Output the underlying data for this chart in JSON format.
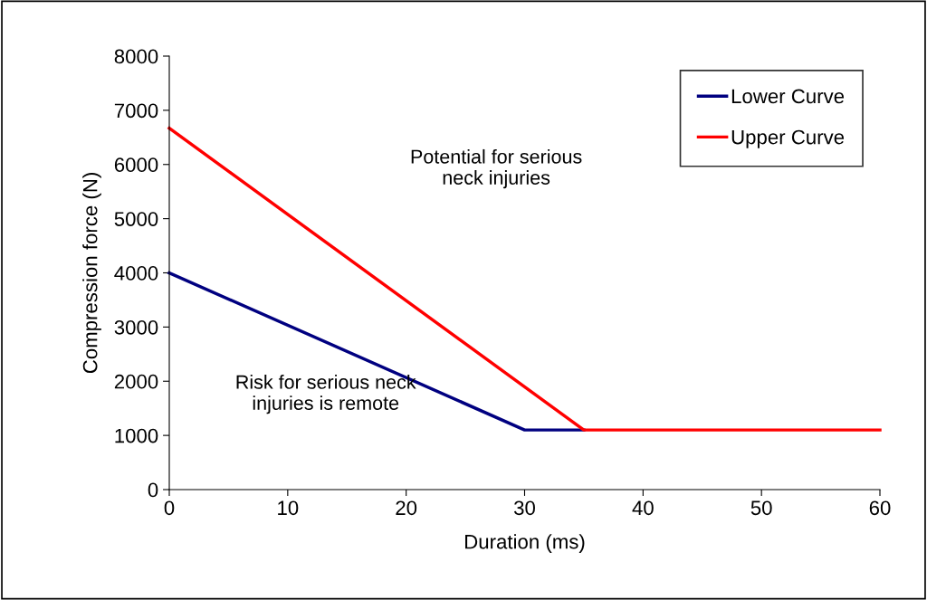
{
  "chart_data": {
    "type": "line",
    "xlabel": "Duration (ms)",
    "ylabel": "Compression force (N)",
    "series": [
      {
        "name": "Lower Curve",
        "color": "#000080",
        "x": [
          0,
          30,
          35
        ],
        "values": [
          4000,
          1100,
          1100
        ]
      },
      {
        "name": "Upper Curve",
        "color": "#ff0000",
        "x": [
          0,
          35,
          60
        ],
        "values": [
          6670,
          1100,
          1100
        ]
      }
    ],
    "xlim": [
      0,
      60
    ],
    "xticks": [
      0,
      10,
      20,
      30,
      40,
      50,
      60
    ],
    "ylim": [
      0,
      8000
    ],
    "yticks": [
      0,
      1000,
      2000,
      3000,
      4000,
      5000,
      6000,
      7000,
      8000
    ],
    "grid": false,
    "legend": "top right",
    "marker": "none",
    "line_style": "solid",
    "annotations": [
      "Potential for serious\nneck injuries",
      "Risk for serious neck\ninjuries is remote"
    ]
  }
}
